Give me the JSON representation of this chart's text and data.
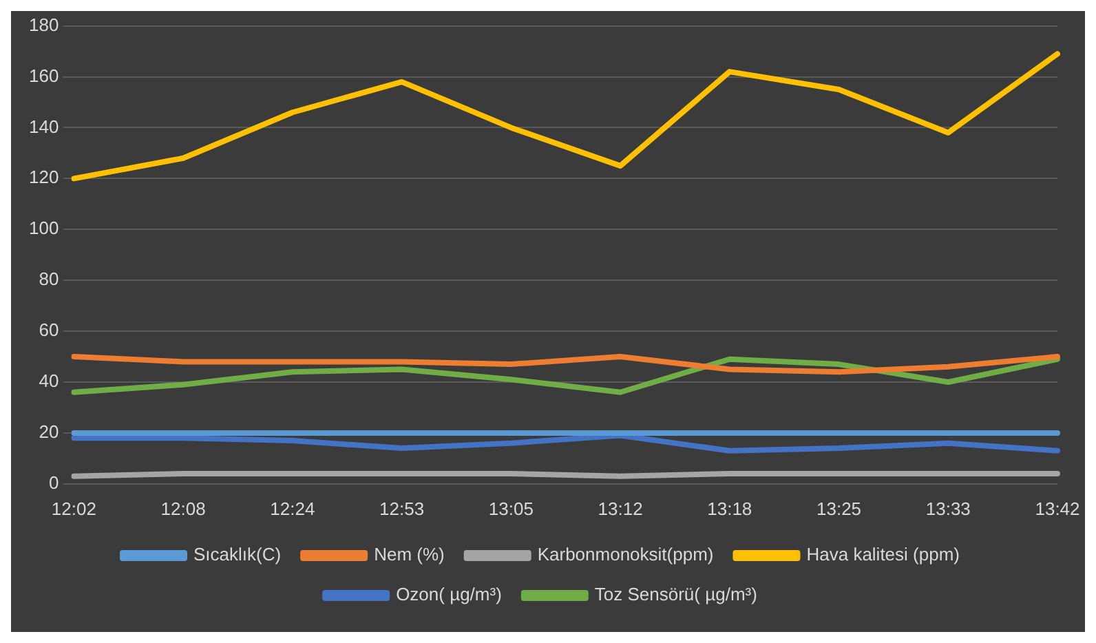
{
  "chart_data": {
    "type": "line",
    "categories": [
      "12:02",
      "12:08",
      "12:24",
      "12:53",
      "13:05",
      "13:12",
      "13:18",
      "13:25",
      "13:33",
      "13:42"
    ],
    "series": [
      {
        "name": "Sıcaklık(C)",
        "color": "#5b9bd5",
        "values": [
          20,
          20,
          20,
          20,
          20,
          20,
          20,
          20,
          20,
          20
        ]
      },
      {
        "name": "Nem (%)",
        "color": "#ed7d31",
        "values": [
          50,
          48,
          48,
          48,
          47,
          50,
          45,
          44,
          46,
          50
        ]
      },
      {
        "name": "Karbonmonoksit(ppm)",
        "color": "#a5a5a5",
        "values": [
          3,
          4,
          4,
          4,
          4,
          3,
          4,
          4,
          4,
          4
        ]
      },
      {
        "name": "Hava kalitesi (ppm)",
        "color": "#ffc000",
        "values": [
          120,
          128,
          146,
          158,
          140,
          125,
          162,
          155,
          138,
          169
        ]
      },
      {
        "name": "Ozon( µg/m³)",
        "color": "#4472c4",
        "values": [
          18,
          18,
          17,
          14,
          16,
          19,
          13,
          14,
          16,
          13
        ]
      },
      {
        "name": "Toz Sensörü( µg/m³)",
        "color": "#70ad47",
        "values": [
          36,
          39,
          44,
          45,
          41,
          36,
          49,
          47,
          40,
          49
        ]
      }
    ],
    "ylim": [
      0,
      180
    ],
    "yticks": [
      0,
      20,
      40,
      60,
      80,
      100,
      120,
      140,
      160,
      180
    ],
    "grid": "y",
    "legend": "bottom",
    "marker": "none",
    "line_style": "solid"
  }
}
